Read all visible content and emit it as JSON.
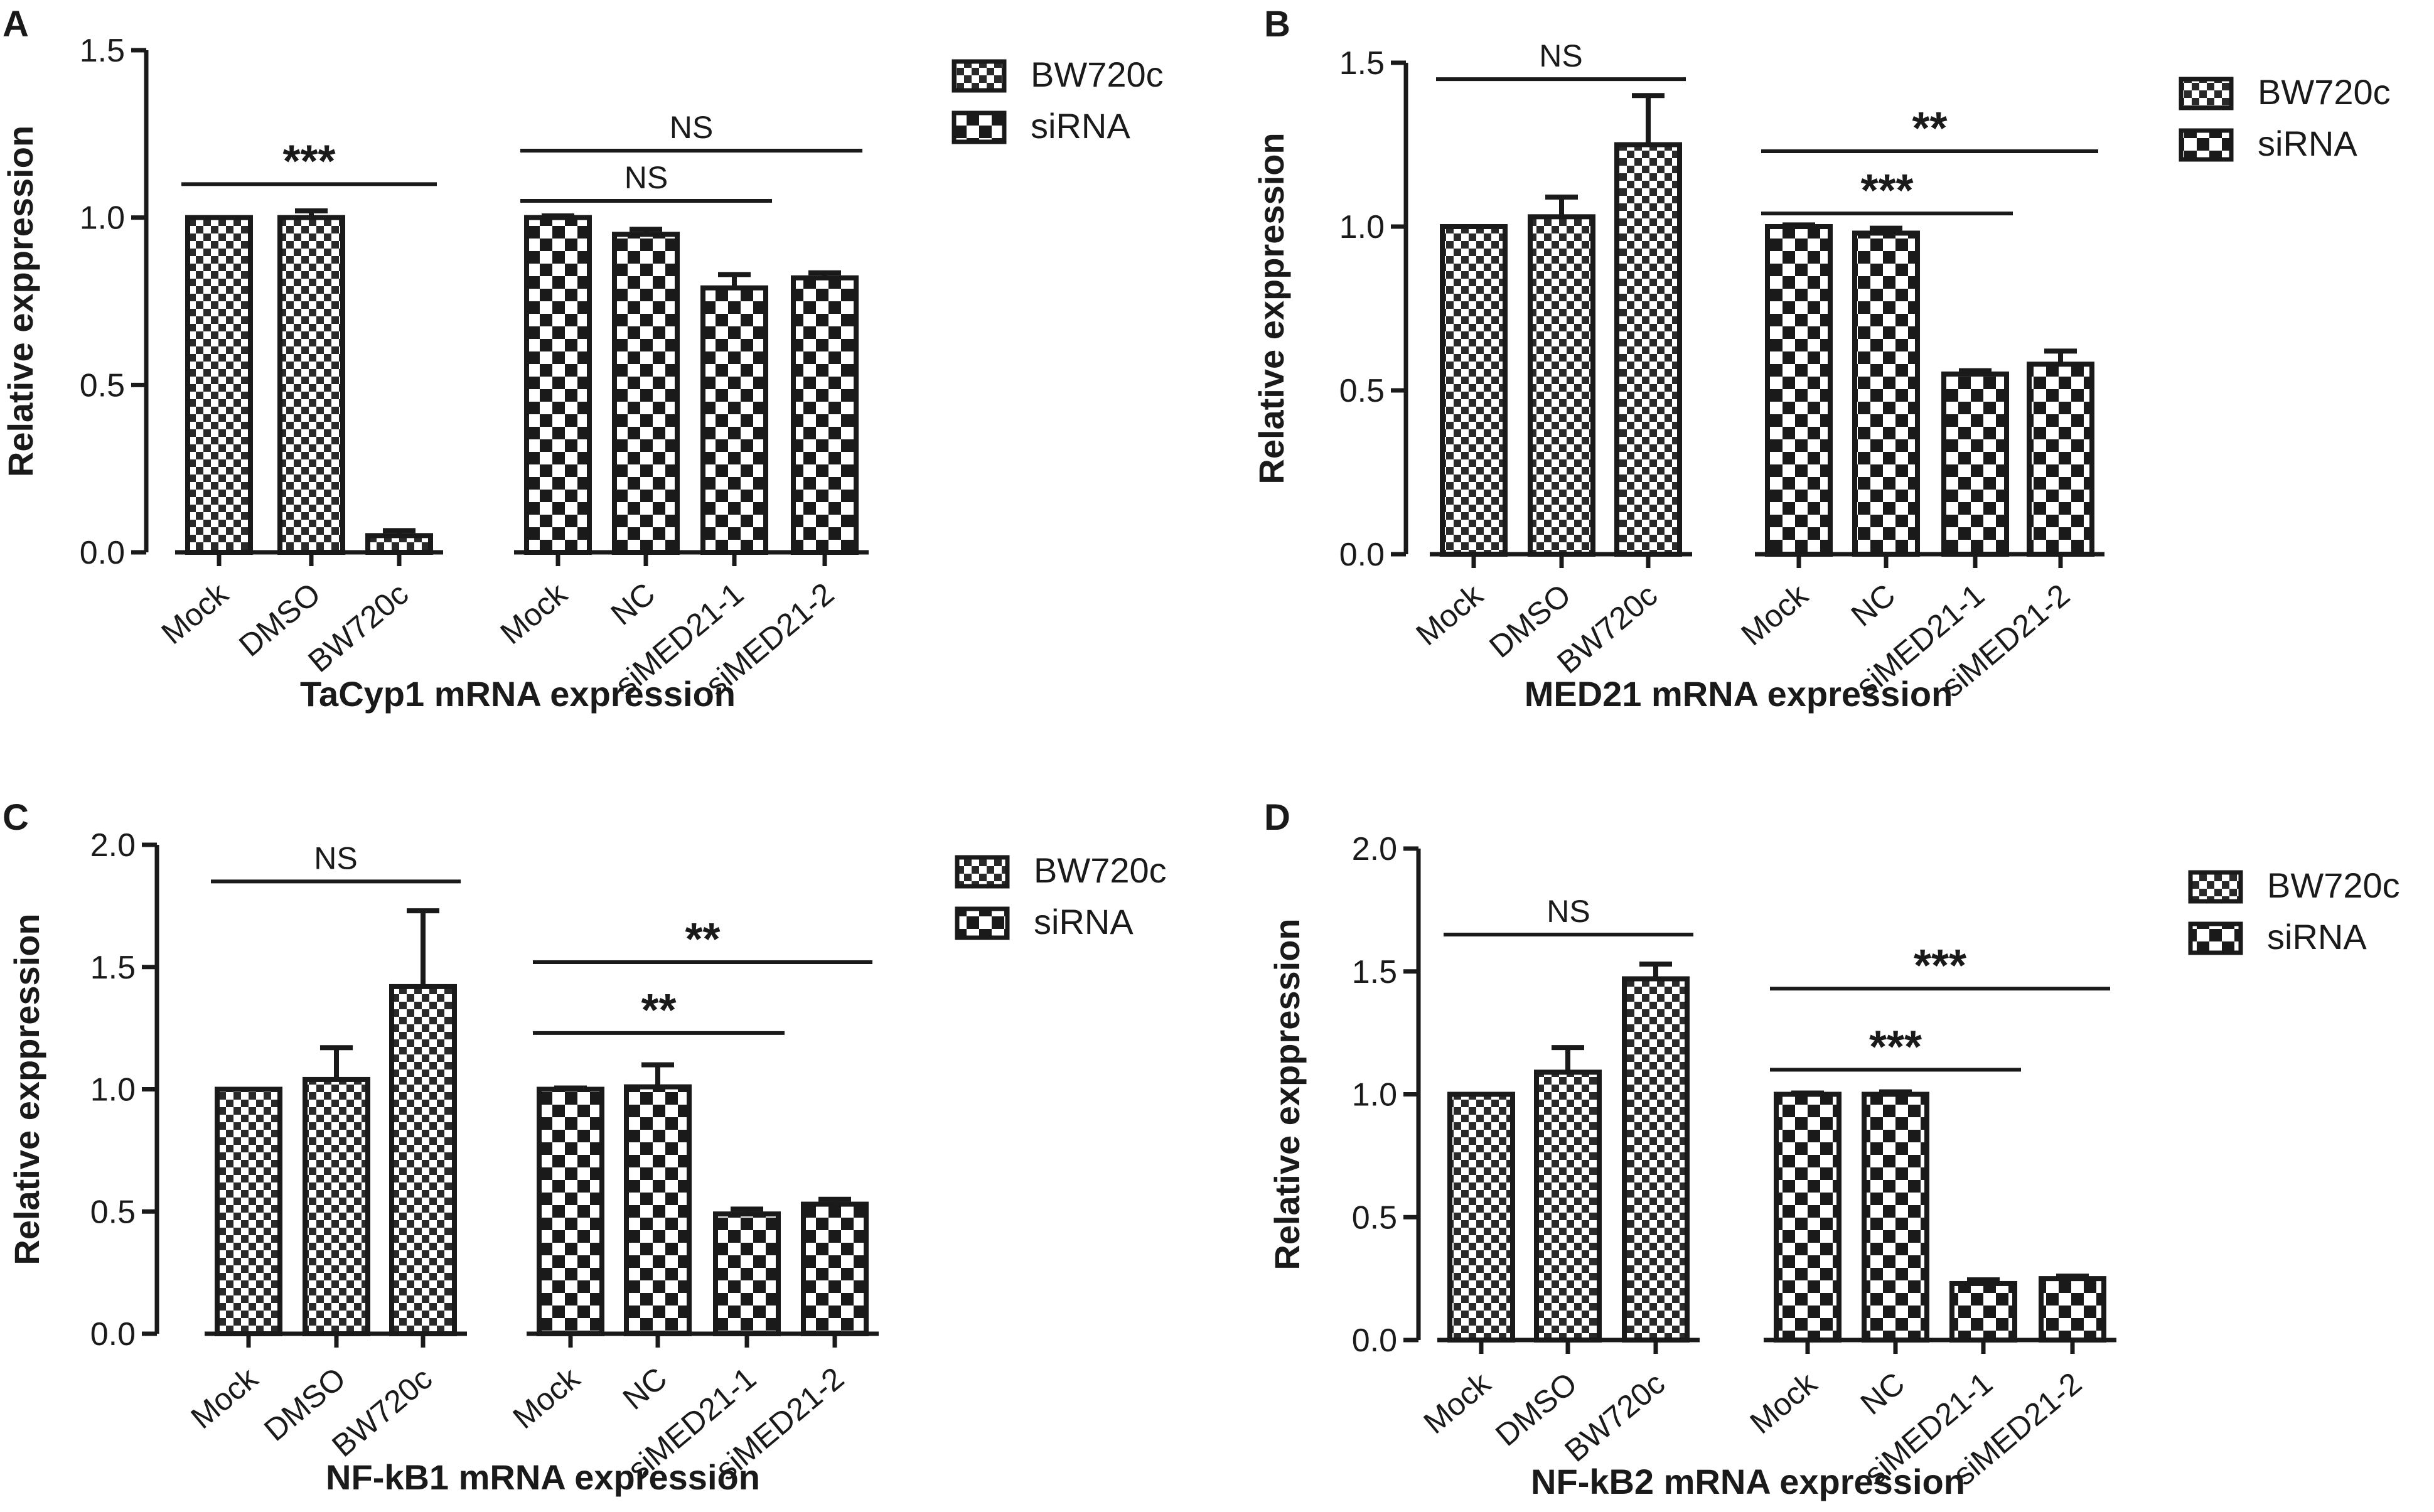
{
  "figure": {
    "legend_labels": [
      "BW720c",
      "siRNA"
    ],
    "ylabel": "Relative exppression"
  },
  "chart_data": [
    {
      "panel": "A",
      "type": "bar",
      "title": "TaCyp1 mRNA expression",
      "xlabel": "TaCyp1 mRNA expression",
      "ylabel": "Relative exppression",
      "ylim": [
        0,
        1.5
      ],
      "yticks": [
        "0.0",
        "0.5",
        "1.0",
        "1.5"
      ],
      "legend": [
        "BW720c",
        "siRNA"
      ],
      "legend_position": "top-right",
      "categories": [
        "Mock",
        "DMSO",
        "BW720c",
        "Mock",
        "NC",
        "siMED21-1",
        "siMED21-2"
      ],
      "values": [
        1.0,
        1.0,
        0.05,
        1.0,
        0.95,
        0.79,
        0.82
      ],
      "errors": [
        0.0,
        0.02,
        0.015,
        0.005,
        0.015,
        0.04,
        0.015
      ],
      "groups": [
        "BW720c",
        "BW720c",
        "BW720c",
        "siRNA",
        "siRNA",
        "siRNA",
        "siRNA"
      ],
      "significance": [
        {
          "from": 0,
          "to": 2,
          "label": "***",
          "y": 1.1
        },
        {
          "from": 3,
          "to": 6,
          "label": "NS",
          "y": 1.2
        },
        {
          "from": 3,
          "to": 5,
          "label": "NS",
          "y": 1.05
        }
      ]
    },
    {
      "panel": "B",
      "type": "bar",
      "title": "MED21 mRNA expression",
      "xlabel": "MED21 mRNA expression",
      "ylabel": "Relative exppression",
      "ylim": [
        0,
        1.5
      ],
      "yticks": [
        "0.0",
        "0.5",
        "1.0",
        "1.5"
      ],
      "legend": [
        "BW720c",
        "siRNA"
      ],
      "legend_position": "top-right",
      "categories": [
        "Mock",
        "DMSO",
        "BW720c",
        "Mock",
        "NC",
        "siMED21-1",
        "siMED21-2"
      ],
      "values": [
        1.0,
        1.03,
        1.25,
        1.0,
        0.98,
        0.55,
        0.58
      ],
      "errors": [
        0.0,
        0.06,
        0.15,
        0.005,
        0.015,
        0.01,
        0.04
      ],
      "groups": [
        "BW720c",
        "BW720c",
        "BW720c",
        "siRNA",
        "siRNA",
        "siRNA",
        "siRNA"
      ],
      "significance": [
        {
          "from": 0,
          "to": 2,
          "label": "NS",
          "y": 1.45
        },
        {
          "from": 3,
          "to": 6,
          "label": "**",
          "y": 1.23
        },
        {
          "from": 3,
          "to": 5,
          "label": "***",
          "y": 1.04
        }
      ]
    },
    {
      "panel": "C",
      "type": "bar",
      "title": "NF-kB1 mRNA expression",
      "xlabel": "NF-kB1 mRNA expression",
      "ylabel": "Relative exppression",
      "ylim": [
        0,
        2.0
      ],
      "yticks": [
        "0.0",
        "0.5",
        "1.0",
        "1.5",
        "2.0"
      ],
      "legend": [
        "BW720c",
        "siRNA"
      ],
      "legend_position": "top-right",
      "categories": [
        "Mock",
        "DMSO",
        "BW720c",
        "Mock",
        "NC",
        "siMED21-1",
        "siMED21-2"
      ],
      "values": [
        1.0,
        1.04,
        1.42,
        1.0,
        1.01,
        0.49,
        0.53
      ],
      "errors": [
        0.0,
        0.13,
        0.31,
        0.005,
        0.09,
        0.02,
        0.02
      ],
      "groups": [
        "BW720c",
        "BW720c",
        "BW720c",
        "siRNA",
        "siRNA",
        "siRNA",
        "siRNA"
      ],
      "significance": [
        {
          "from": 0,
          "to": 2,
          "label": "NS",
          "y": 1.85
        },
        {
          "from": 3,
          "to": 6,
          "label": "**",
          "y": 1.52
        },
        {
          "from": 3,
          "to": 5,
          "label": "**",
          "y": 1.23
        }
      ]
    },
    {
      "panel": "D",
      "type": "bar",
      "title": "NF-kB2 mRNA expression",
      "xlabel": "NF-kB2 mRNA expression",
      "ylabel": "Relative exppression",
      "ylim": [
        0,
        2.0
      ],
      "yticks": [
        "0.0",
        "0.5",
        "1.0",
        "1.5",
        "2.0"
      ],
      "legend": [
        "BW720c",
        "siRNA"
      ],
      "legend_position": "top-right",
      "categories": [
        "Mock",
        "DMSO",
        "BW720c",
        "Mock",
        "NC",
        "siMED21-1",
        "siMED21-2"
      ],
      "values": [
        1.0,
        1.09,
        1.47,
        1.0,
        1.0,
        0.23,
        0.25
      ],
      "errors": [
        0.0,
        0.1,
        0.06,
        0.005,
        0.01,
        0.015,
        0.01
      ],
      "groups": [
        "BW720c",
        "BW720c",
        "BW720c",
        "siRNA",
        "siRNA",
        "siRNA",
        "siRNA"
      ],
      "significance": [
        {
          "from": 0,
          "to": 2,
          "label": "NS",
          "y": 1.65
        },
        {
          "from": 3,
          "to": 6,
          "label": "***",
          "y": 1.43
        },
        {
          "from": 3,
          "to": 5,
          "label": "***",
          "y": 1.1
        }
      ]
    }
  ]
}
